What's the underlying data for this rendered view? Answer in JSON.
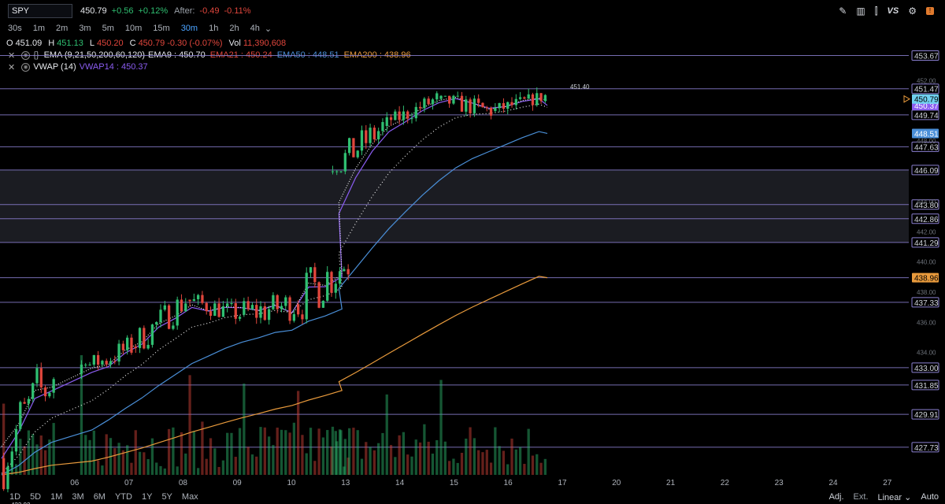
{
  "header": {
    "symbol": "SPY",
    "last": "450.79",
    "change": "+0.56",
    "change_pct": "+0.12%",
    "after_label": "After:",
    "after_change": "-0.49",
    "after_pct": "-0.11%",
    "icons": [
      "pencil-icon",
      "bar-chart-icon",
      "candles-icon",
      "compare-vs-icon",
      "settings-gear-icon",
      "alert-icon"
    ],
    "vs_label": "VS"
  },
  "timeframes": {
    "items": [
      "30s",
      "1m",
      "2m",
      "3m",
      "5m",
      "10m",
      "15m",
      "30m",
      "1h",
      "2h",
      "4h"
    ],
    "active": "30m",
    "more_icon": "chevron-down-icon"
  },
  "ohlc": {
    "o_label": "O",
    "o": "451.09",
    "h_label": "H",
    "h": "451.13",
    "l_label": "L",
    "l": "450.20",
    "c_label": "C",
    "c": "450.79",
    "chg": "-0.30 (-0.07%)",
    "vol_label": "Vol",
    "vol": "11,390,608"
  },
  "indicators": {
    "ema_name": "EMA (9,21,50,200,60,120)",
    "ema9": "EMA9 : 450.70",
    "ema21": "EMA21 : 450.24",
    "ema50": "EMA50 : 448.51",
    "ema200": "EMA200 : 438.96",
    "vwap_name": "VWAP (14)",
    "vwap14": "VWAP14 : 450.37"
  },
  "colors": {
    "up": "#2fbf71",
    "down": "#e0463c",
    "vwap": "#8a5cf0",
    "ema50": "#4a8fd8",
    "ema200": "#e89a3c",
    "ema9": "#e8e8e8",
    "level": "#8a7fd0",
    "last_price": "#6fd0ef"
  },
  "chart_data": {
    "type": "candlestick",
    "y_range": [
      425.9,
      455.0
    ],
    "levels": [
      453.67,
      451.47,
      449.74,
      447.63,
      446.09,
      443.8,
      442.86,
      441.29,
      438.96,
      437.33,
      433.0,
      431.85,
      429.91,
      427.73
    ],
    "level_labels": [
      "453.67",
      "451.47",
      "449.74",
      "447.63",
      "446.09",
      "443.80",
      "442.86",
      "441.29",
      "437.33",
      "433.00",
      "431.85",
      "429.91",
      "427.73"
    ],
    "zone": [
      441.29,
      446.09
    ],
    "tick_labels": [
      "452.00",
      "448.00",
      "444.00",
      "442.00",
      "440.00",
      "438.00",
      "436.00",
      "434.00"
    ],
    "price_badges": {
      "last": "450.79",
      "vwap": "450.37",
      "ema50": "448.51",
      "ema200": "438.96"
    },
    "annotations": {
      "high_label": "451.40",
      "low_label": "423.92"
    },
    "x_labels": [
      "06",
      "07",
      "08",
      "09",
      "10",
      "13",
      "14",
      "15",
      "16",
      "17",
      "20",
      "21",
      "22",
      "23",
      "24",
      "27"
    ],
    "days": [
      {
        "open": 427.0,
        "close": 432.6,
        "low": 423.9,
        "high": 433.8
      },
      {
        "open": 432.6,
        "close": 434.4,
        "low": 433.0,
        "high": 436.3
      },
      {
        "open": 434.4,
        "close": 437.5,
        "low": 434.0,
        "high": 438.0
      },
      {
        "open": 437.5,
        "close": 436.5,
        "low": 435.5,
        "high": 438.2
      },
      {
        "open": 436.5,
        "close": 437.2,
        "low": 433.6,
        "high": 438.0
      },
      {
        "open": 437.2,
        "close": 440.1,
        "low": 434.6,
        "high": 441.4
      },
      {
        "open": 446.0,
        "close": 448.9,
        "low": 445.8,
        "high": 450.2
      },
      {
        "open": 449.0,
        "close": 450.8,
        "low": 449.2,
        "high": 451.5
      },
      {
        "open": 450.8,
        "close": 450.0,
        "low": 448.7,
        "high": 451.2
      },
      {
        "open": 450.0,
        "close": 451.0,
        "low": 449.6,
        "high": 451.4
      }
    ],
    "ema9_ends": [
      432.0,
      450.7
    ],
    "ema21_ends": [
      426.0,
      450.24
    ],
    "ema50_ends": [
      425.9,
      448.51
    ],
    "ema200_ends": [
      425.9,
      438.96
    ],
    "vwap_ends": [
      428.5,
      450.37
    ]
  },
  "bottom": {
    "ranges": [
      "1D",
      "5D",
      "1M",
      "3M",
      "6M",
      "YTD",
      "1Y",
      "5Y",
      "Max"
    ],
    "adj": "Adj.",
    "ext": "Ext.",
    "scale": "Linear",
    "auto": "Auto"
  }
}
